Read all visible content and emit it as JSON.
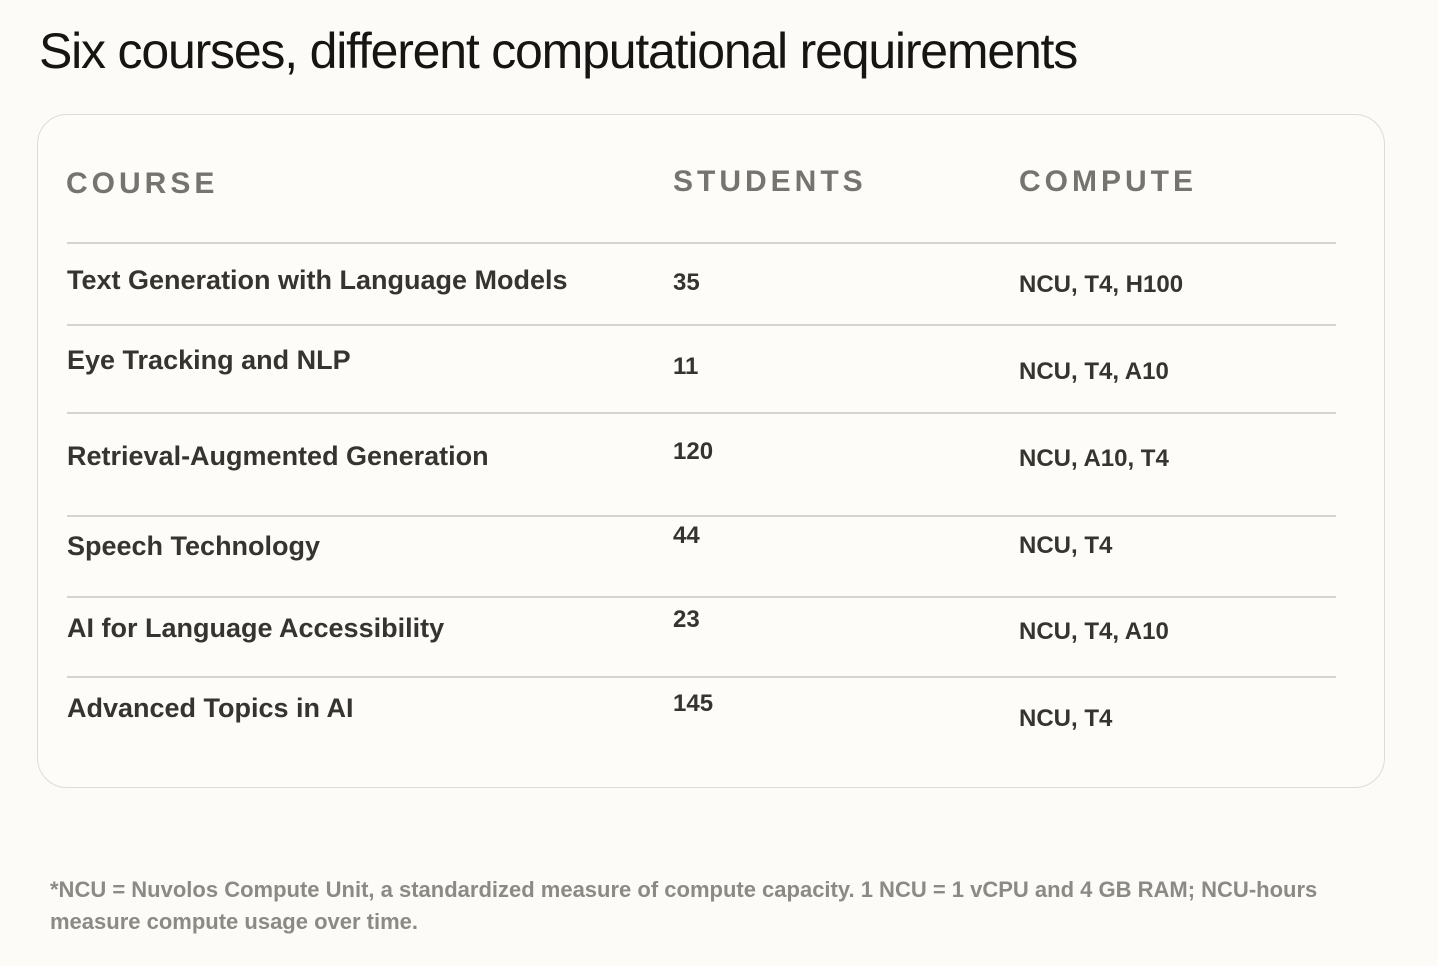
{
  "title": "Six courses, different computational requirements",
  "table": {
    "headers": {
      "course": "COURSE",
      "students": "STUDENTS",
      "compute": "COMPUTE"
    },
    "rows": [
      {
        "course": "Text Generation with Language Models",
        "students": "35",
        "compute": "NCU, T4, H100"
      },
      {
        "course": "Eye Tracking and NLP",
        "students": "11",
        "compute": "NCU, T4, A10"
      },
      {
        "course": "Retrieval-Augmented Generation",
        "students": "120",
        "compute": "NCU, A10, T4"
      },
      {
        "course": "Speech Technology",
        "students": "44",
        "compute": "NCU, T4"
      },
      {
        "course": "AI for Language Accessibility",
        "students": "23",
        "compute": "NCU, T4, A10"
      },
      {
        "course": "Advanced Topics in AI",
        "students": "145",
        "compute": "NCU, T4"
      }
    ]
  },
  "footnote": "*NCU = Nuvolos Compute Unit, a standardized measure of compute capacity. 1 NCU = 1 vCPU and 4 GB RAM; NCU-hours measure compute usage over time."
}
